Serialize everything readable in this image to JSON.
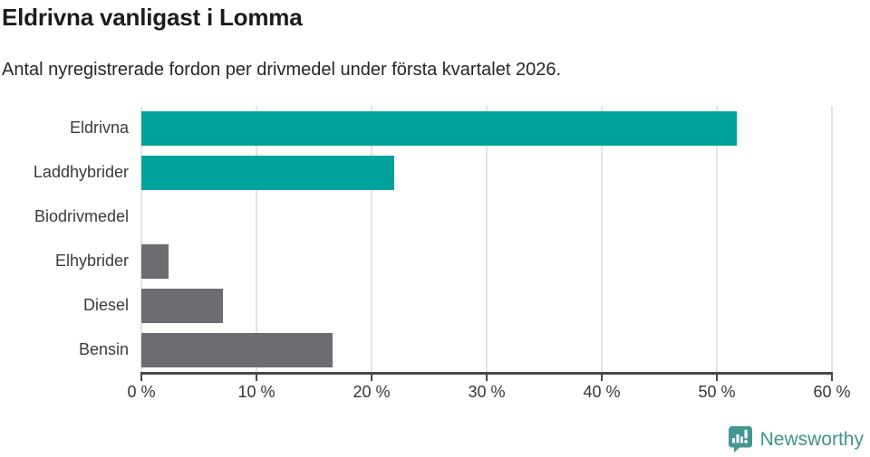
{
  "header": {
    "title": "Eldrivna vanligast i Lomma",
    "subtitle": "Antal nyregistrerade fordon per drivmedel under första kvartalet 2026."
  },
  "chart_data": {
    "type": "bar",
    "orientation": "horizontal",
    "title": "Eldrivna vanligast i Lomma",
    "subtitle": "Antal nyregistrerade fordon per drivmedel under första kvartalet 2026.",
    "categories": [
      "Eldrivna",
      "Laddhybrider",
      "Biodrivmedel",
      "Elhybrider",
      "Diesel",
      "Bensin"
    ],
    "values": [
      51.7,
      22.0,
      0,
      2.4,
      7.1,
      16.6
    ],
    "unit": "%",
    "xlabel": "",
    "ylabel": "",
    "xlim": [
      0,
      60
    ],
    "x_ticks": [
      0,
      10,
      20,
      30,
      40,
      50,
      60
    ],
    "x_tick_labels": [
      "0 %",
      "10 %",
      "20 %",
      "30 %",
      "40 %",
      "50 %",
      "60 %"
    ],
    "bar_colors": [
      "#00a29b",
      "#00a29b",
      "#6c6c71",
      "#6c6c71",
      "#6c6c71",
      "#6c6c71"
    ],
    "grid": "vertical-only",
    "legend": "none"
  },
  "colors": {
    "accent_teal": "#00a29b",
    "bar_gray": "#6c6c71",
    "gridline": "#e3e3e3",
    "axis": "#474747",
    "logo_teal": "#429890",
    "logo_text": "#3f948d"
  },
  "footer": {
    "brand": "Newsworthy"
  }
}
